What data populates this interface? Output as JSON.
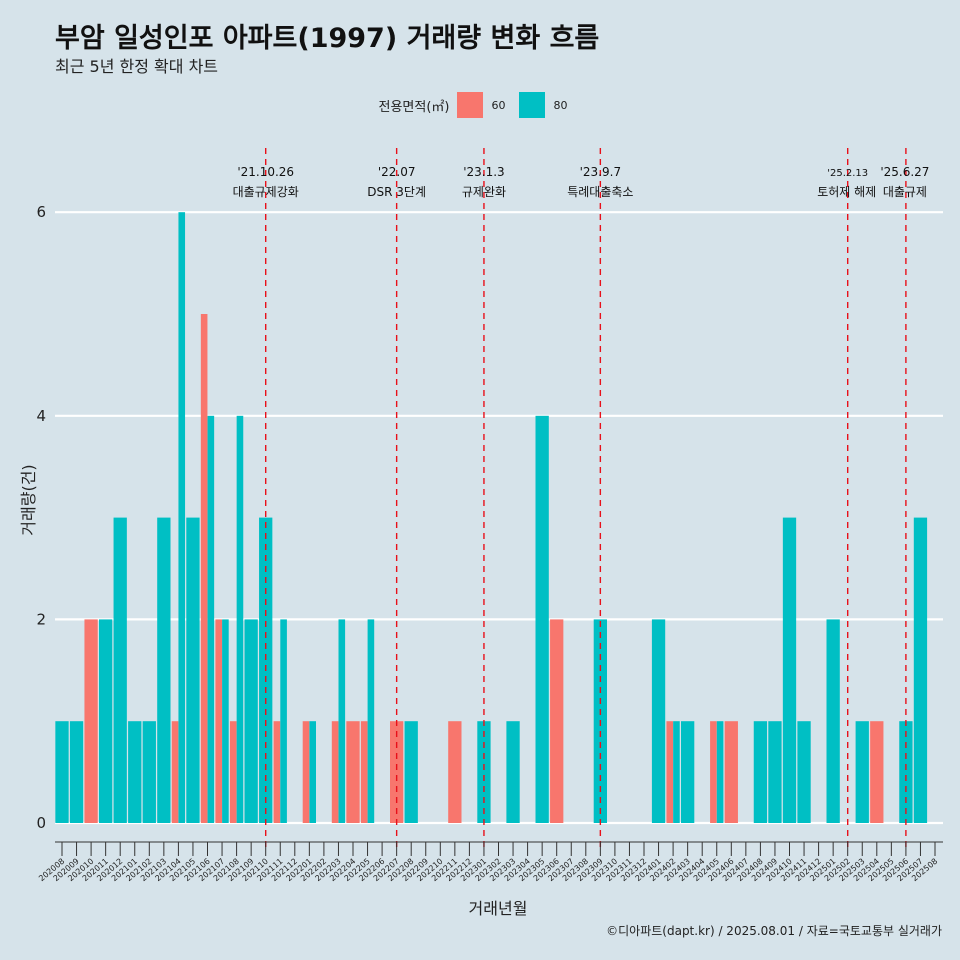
{
  "title": "부암 일성인포 아파트(1997) 거래량 변화 흐름",
  "subtitle": "최근 5년 한정 확대 차트",
  "caption": "©디아파트(dapt.kr) / 2025.08.01 / 자료=국토교통부 실거래가",
  "legend": {
    "title": "전용면적(㎡)",
    "items": [
      {
        "label": "60",
        "color": "#f8766d"
      },
      {
        "label": "80",
        "color": "#00bfc4"
      }
    ]
  },
  "chart_data": {
    "type": "bar",
    "xlabel": "거래년월",
    "ylabel": "거래량(건)",
    "ylim": [
      0,
      6
    ],
    "yticks": [
      "0",
      "2",
      "4",
      "6"
    ],
    "grid": true,
    "legend_position": "top",
    "categories": [
      "202008",
      "202009",
      "202010",
      "202011",
      "202012",
      "202101",
      "202102",
      "202103",
      "202104",
      "202105",
      "202106",
      "202107",
      "202108",
      "202109",
      "202110",
      "202111",
      "202112",
      "202201",
      "202202",
      "202203",
      "202204",
      "202205",
      "202206",
      "202207",
      "202208",
      "202209",
      "202210",
      "202211",
      "202212",
      "202301",
      "202302",
      "202303",
      "202304",
      "202305",
      "202306",
      "202307",
      "202308",
      "202309",
      "202310",
      "202311",
      "202312",
      "202401",
      "202402",
      "202403",
      "202404",
      "202405",
      "202406",
      "202407",
      "202408",
      "202409",
      "202410",
      "202411",
      "202412",
      "202501",
      "202502",
      "202503",
      "202504",
      "202505",
      "202506",
      "202507",
      "202508"
    ],
    "series": [
      {
        "name": "60",
        "color": "#f8766d",
        "values": [
          0,
          0,
          2,
          0,
          0,
          0,
          0,
          0,
          1,
          0,
          5,
          2,
          1,
          0,
          0,
          1,
          0,
          1,
          0,
          1,
          1,
          1,
          0,
          1,
          0,
          0,
          0,
          1,
          0,
          0,
          0,
          0,
          0,
          0,
          2,
          0,
          0,
          0,
          0,
          0,
          0,
          0,
          1,
          0,
          0,
          1,
          1,
          0,
          0,
          0,
          0,
          0,
          0,
          0,
          0,
          0,
          1,
          0,
          0,
          0,
          0
        ]
      },
      {
        "name": "80",
        "color": "#00bfc4",
        "values": [
          1,
          1,
          0,
          2,
          3,
          1,
          1,
          3,
          6,
          3,
          4,
          2,
          4,
          2,
          3,
          2,
          0,
          1,
          0,
          2,
          0,
          2,
          0,
          0,
          1,
          0,
          0,
          0,
          0,
          1,
          0,
          1,
          0,
          4,
          0,
          0,
          0,
          2,
          0,
          0,
          0,
          2,
          1,
          1,
          0,
          1,
          0,
          0,
          1,
          1,
          3,
          1,
          0,
          2,
          0,
          1,
          0,
          0,
          1,
          3,
          0
        ]
      }
    ],
    "events": [
      {
        "date": "'21.10.26",
        "label": "대출규제강화",
        "x": "202110"
      },
      {
        "date": "'22.07",
        "label": "DSR 3단계",
        "x": "202207"
      },
      {
        "date": "'23.1.3",
        "label": "규제완화",
        "x": "202301"
      },
      {
        "date": "'23.9.7",
        "label": "특례대출축소",
        "x": "202309"
      },
      {
        "date": "'25.2.13",
        "label": "토허제 해제",
        "x": "202502"
      },
      {
        "date": "'25.6.27",
        "label": "대출규제",
        "x": "202506"
      }
    ]
  }
}
